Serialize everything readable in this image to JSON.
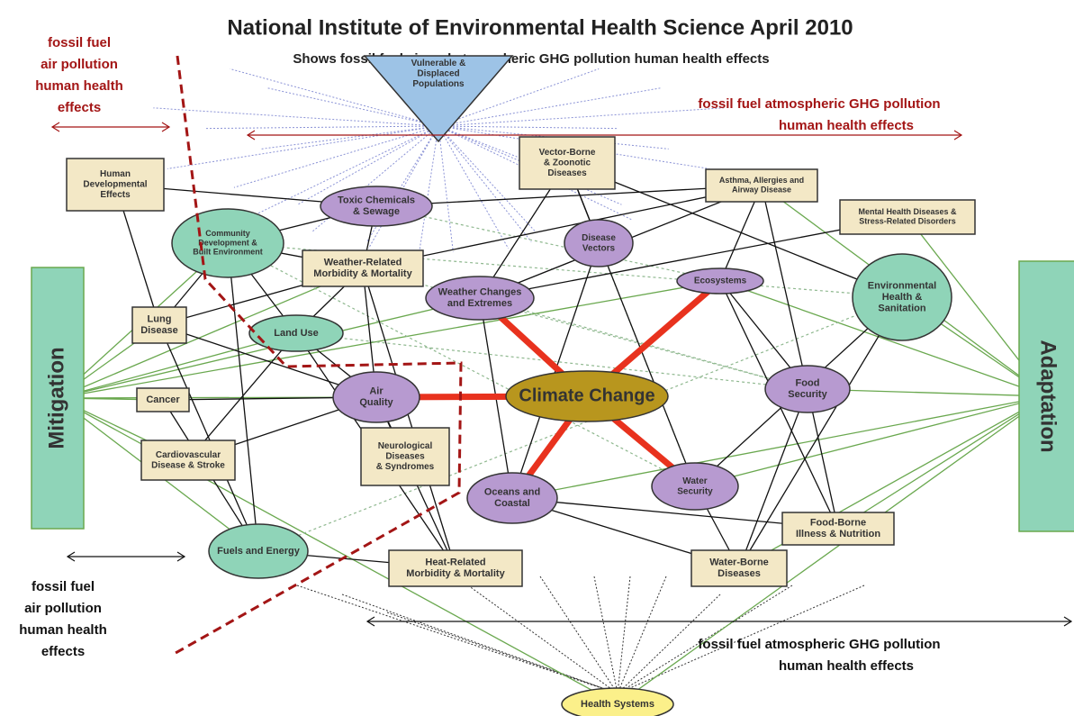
{
  "header": {
    "title": "National Institute of Environmental Health Science  April 2010",
    "subtitle": "Shows fossil fuel air and atmospheric GHG pollution human health effects"
  },
  "annotations": [
    {
      "lines": [
        "fossil fuel",
        "air pollution",
        "human health",
        "effects"
      ]
    },
    {
      "lines": [
        "fossil fuel atmospheric GHG pollution",
        "human health effects"
      ]
    },
    {
      "lines": [
        "fossil fuel",
        "air pollution",
        "human health",
        "effects"
      ]
    },
    {
      "lines": [
        "fossil fuel atmospheric GHG pollution",
        "human health effects"
      ]
    }
  ],
  "nodes": [
    {
      "lines": [
        "Vulnerable &",
        "Displaced",
        "Populations"
      ]
    },
    {
      "lines": [
        "Human",
        "Developmental",
        "Effects"
      ]
    },
    {
      "lines": [
        "Toxic Chemicals",
        "& Sewage"
      ]
    },
    {
      "lines": [
        "Vector-Borne",
        "& Zoonotic",
        "Diseases"
      ]
    },
    {
      "lines": [
        "Asthma, Allergies and",
        "Airway Disease"
      ]
    },
    {
      "lines": [
        "Mental Health Diseases &",
        "Stress-Related  Disorders"
      ]
    },
    {
      "lines": [
        "Community",
        "Development &",
        "Built Environment"
      ]
    },
    {
      "lines": [
        "Disease",
        "Vectors"
      ]
    },
    {
      "lines": [
        "Weather-Related",
        "Morbidity & Mortality"
      ]
    },
    {
      "lines": [
        "Ecosystems"
      ]
    },
    {
      "lines": [
        "Environmental",
        "Health &",
        "Sanitation"
      ]
    },
    {
      "lines": [
        "Weather Changes",
        "and Extremes"
      ]
    },
    {
      "lines": [
        "Lung",
        "Disease"
      ]
    },
    {
      "lines": [
        "Land Use"
      ]
    },
    {
      "lines": [
        "Mitigation"
      ]
    },
    {
      "lines": [
        "Adaptation"
      ]
    },
    {
      "lines": [
        "Cancer"
      ]
    },
    {
      "lines": [
        "Air",
        "Quality"
      ]
    },
    {
      "lines": [
        "Climate Change"
      ]
    },
    {
      "lines": [
        "Food",
        "Security"
      ]
    },
    {
      "lines": [
        "Neurological",
        "Diseases",
        "& Syndromes"
      ]
    },
    {
      "lines": [
        "Cardiovascular",
        "Disease & Stroke"
      ]
    },
    {
      "lines": [
        "Oceans and",
        "Coastal"
      ]
    },
    {
      "lines": [
        "Water",
        "Security"
      ]
    },
    {
      "lines": [
        "Fuels and Energy"
      ]
    },
    {
      "lines": [
        "Food-Borne",
        "Illness & Nutrition"
      ]
    },
    {
      "lines": [
        "Heat-Related",
        "Morbidity & Mortality"
      ]
    },
    {
      "lines": [
        "Water-Borne",
        "Diseases"
      ]
    },
    {
      "lines": [
        "Health Systems"
      ]
    }
  ]
}
